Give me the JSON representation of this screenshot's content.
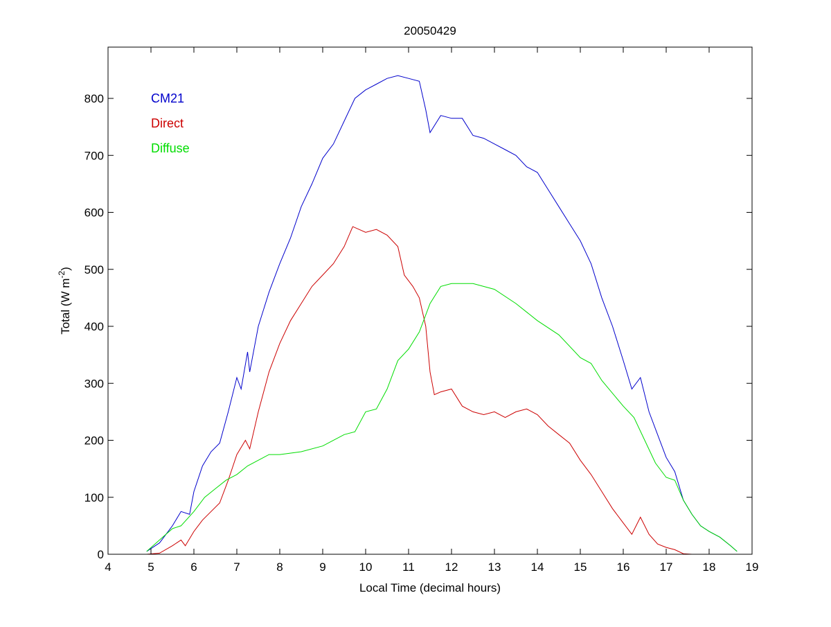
{
  "chart_data": {
    "type": "line",
    "title": "20050429",
    "xlabel": "Local Time (decimal hours)",
    "ylabel": "Total (W m",
    "ylabel_sup": "-2",
    "ylabel_end": ")",
    "xlim": [
      4,
      19
    ],
    "ylim": [
      0,
      890
    ],
    "xticks": [
      4,
      5,
      6,
      7,
      8,
      9,
      10,
      11,
      12,
      13,
      14,
      15,
      16,
      17,
      18,
      19
    ],
    "yticks": [
      0,
      100,
      200,
      300,
      400,
      500,
      600,
      700,
      800
    ],
    "grid": false,
    "legend_placement": "top-left",
    "series": [
      {
        "name": "CM21",
        "color": "#0000cc",
        "x": [
          4.9,
          5.2,
          5.5,
          5.7,
          5.9,
          6.0,
          6.2,
          6.4,
          6.6,
          6.8,
          7.0,
          7.1,
          7.25,
          7.3,
          7.5,
          7.75,
          8.0,
          8.25,
          8.5,
          8.75,
          9.0,
          9.25,
          9.5,
          9.75,
          10.0,
          10.25,
          10.5,
          10.75,
          11.0,
          11.25,
          11.4,
          11.5,
          11.75,
          12.0,
          12.25,
          12.5,
          12.75,
          13.0,
          13.25,
          13.5,
          13.75,
          14.0,
          14.25,
          14.5,
          14.75,
          15.0,
          15.25,
          15.5,
          15.75,
          16.0,
          16.2,
          16.4,
          16.6,
          16.8,
          17.0,
          17.2,
          17.4,
          17.6,
          17.8,
          18.0,
          18.25,
          18.5,
          18.65
        ],
        "y": [
          5,
          20,
          50,
          75,
          70,
          110,
          155,
          180,
          195,
          250,
          310,
          290,
          355,
          320,
          400,
          460,
          510,
          555,
          610,
          650,
          695,
          720,
          760,
          800,
          815,
          825,
          835,
          840,
          835,
          830,
          780,
          740,
          770,
          765,
          765,
          735,
          730,
          720,
          710,
          700,
          680,
          670,
          640,
          610,
          580,
          550,
          510,
          450,
          400,
          340,
          290,
          310,
          250,
          210,
          170,
          145,
          95,
          70,
          50,
          40,
          30,
          15,
          5
        ]
      },
      {
        "name": "Direct",
        "color": "#cc0000",
        "x": [
          4.9,
          5.2,
          5.5,
          5.7,
          5.8,
          6.0,
          6.2,
          6.4,
          6.6,
          6.8,
          7.0,
          7.2,
          7.3,
          7.5,
          7.75,
          8.0,
          8.25,
          8.5,
          8.75,
          9.0,
          9.25,
          9.5,
          9.7,
          10.0,
          10.25,
          10.5,
          10.75,
          10.9,
          11.1,
          11.25,
          11.4,
          11.5,
          11.6,
          11.75,
          12.0,
          12.25,
          12.5,
          12.75,
          13.0,
          13.25,
          13.5,
          13.75,
          14.0,
          14.25,
          14.5,
          14.75,
          15.0,
          15.25,
          15.5,
          15.75,
          16.0,
          16.2,
          16.4,
          16.6,
          16.8,
          17.0,
          17.2,
          17.4,
          17.6
        ],
        "y": [
          0,
          2,
          15,
          25,
          15,
          40,
          60,
          75,
          90,
          130,
          175,
          200,
          185,
          250,
          320,
          370,
          410,
          440,
          470,
          490,
          510,
          540,
          575,
          565,
          570,
          560,
          540,
          490,
          470,
          450,
          400,
          320,
          280,
          285,
          290,
          260,
          250,
          245,
          250,
          240,
          250,
          255,
          245,
          225,
          210,
          195,
          165,
          140,
          110,
          80,
          55,
          35,
          65,
          35,
          18,
          12,
          8,
          1,
          0
        ]
      },
      {
        "name": "Diffuse",
        "color": "#00dd00",
        "x": [
          4.9,
          5.2,
          5.5,
          5.7,
          6.0,
          6.25,
          6.5,
          6.75,
          7.0,
          7.25,
          7.5,
          7.75,
          8.0,
          8.5,
          9.0,
          9.5,
          9.75,
          10.0,
          10.25,
          10.5,
          10.75,
          11.0,
          11.25,
          11.5,
          11.75,
          12.0,
          12.5,
          13.0,
          13.5,
          14.0,
          14.5,
          15.0,
          15.25,
          15.5,
          16.0,
          16.25,
          16.5,
          16.75,
          17.0,
          17.2,
          17.4,
          17.6,
          17.8,
          18.0,
          18.25,
          18.5,
          18.65
        ],
        "y": [
          5,
          25,
          45,
          50,
          75,
          100,
          115,
          130,
          140,
          155,
          165,
          175,
          175,
          180,
          190,
          210,
          215,
          250,
          255,
          290,
          340,
          360,
          390,
          440,
          470,
          475,
          475,
          465,
          440,
          410,
          385,
          345,
          335,
          305,
          260,
          240,
          200,
          160,
          135,
          130,
          95,
          70,
          50,
          40,
          30,
          15,
          5
        ]
      }
    ]
  }
}
